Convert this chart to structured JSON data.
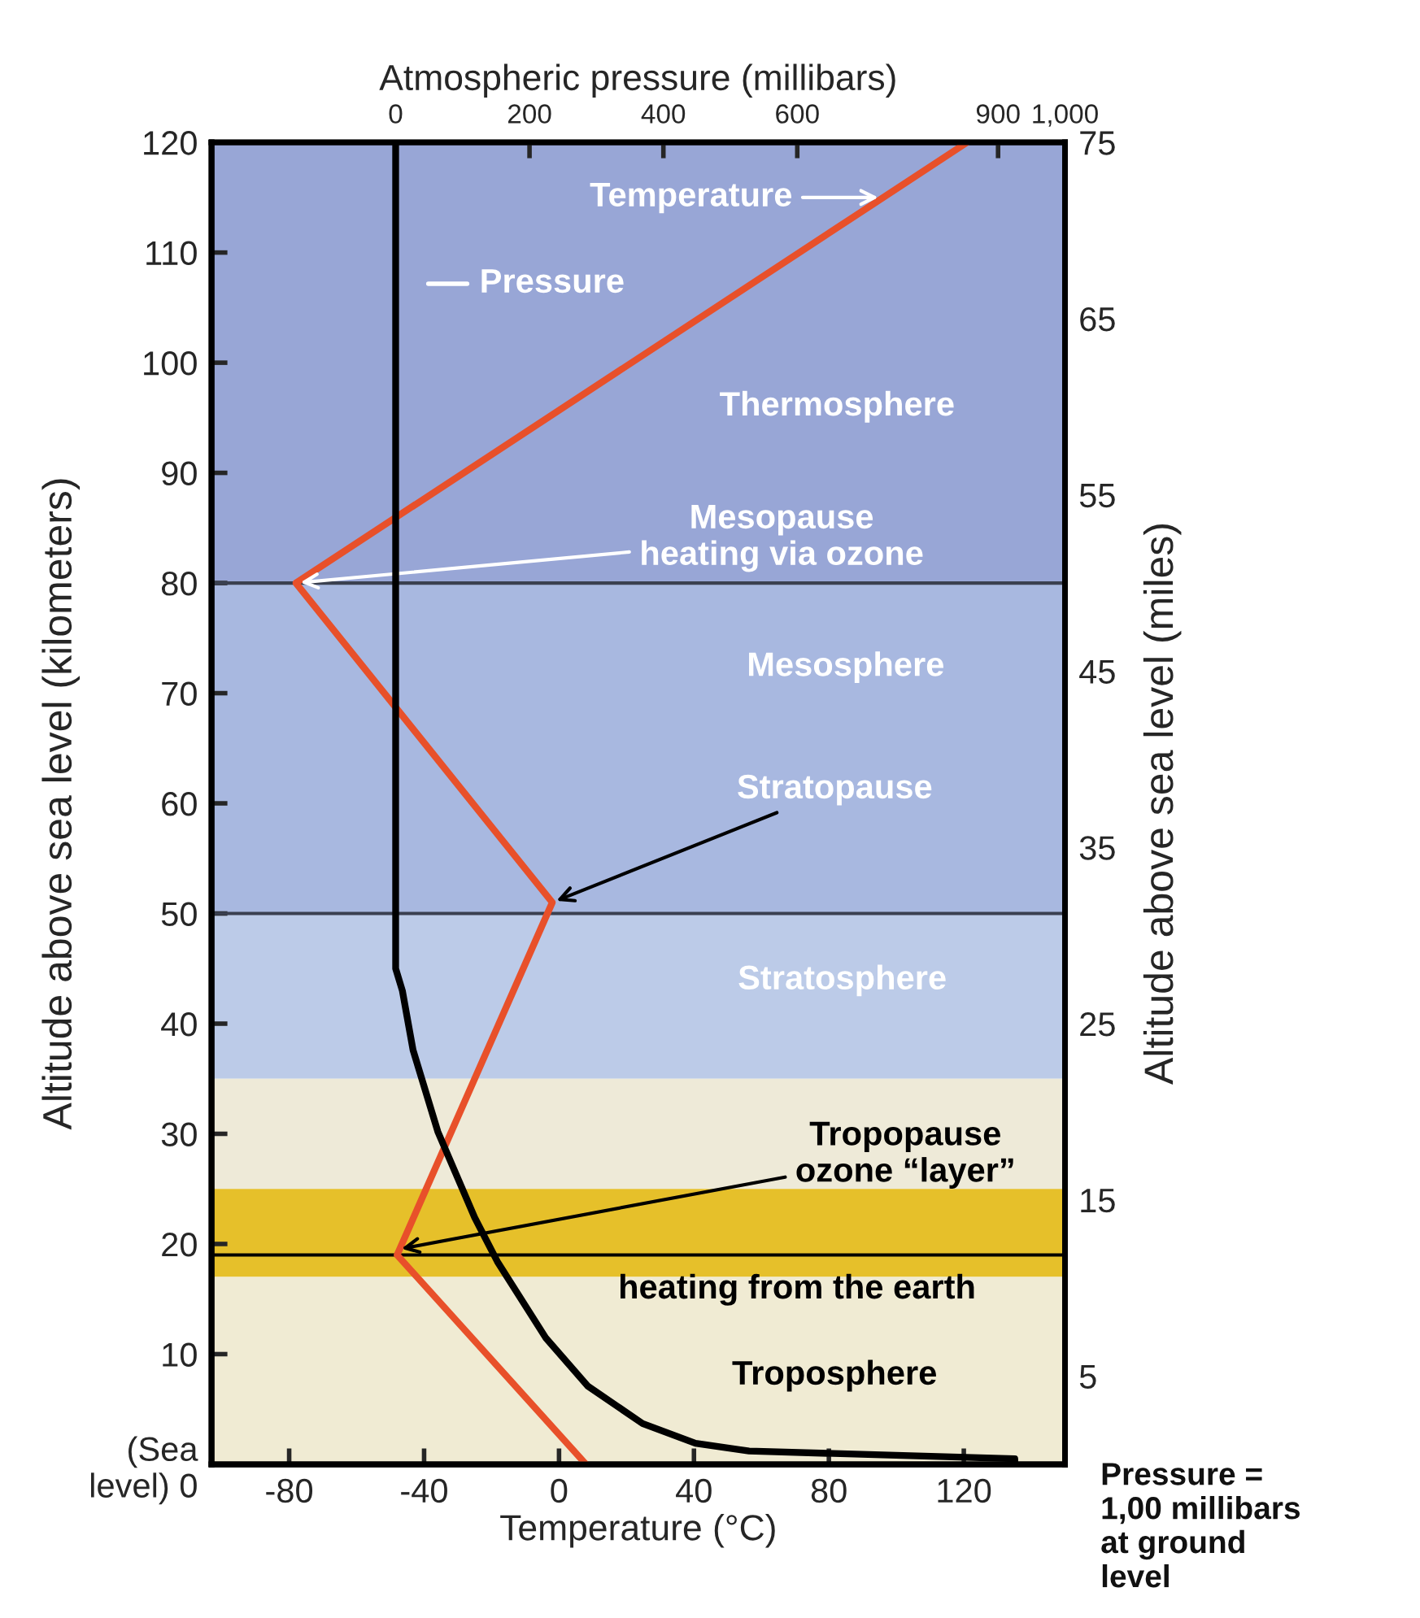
{
  "chart_data": {
    "type": "line",
    "xlabel": "Temperature (°C)",
    "ylabel": "Altitude above sea level (kilometers)",
    "y2label": "Altitude above sea level (miles)",
    "x2label": "Atmospheric pressure (millibars)",
    "xlim": [
      -103,
      150
    ],
    "xticks": [
      -80,
      -40,
      0,
      40,
      80,
      120
    ],
    "ylim": [
      0,
      120
    ],
    "yticks": [
      {
        "value": 0,
        "label": "(Sea\nlevel) 0"
      },
      10,
      20,
      30,
      40,
      50,
      60,
      70,
      80,
      90,
      100,
      110,
      120
    ],
    "y2lim": [
      0,
      75
    ],
    "y2ticks": [
      5,
      15,
      25,
      35,
      45,
      55,
      65,
      75
    ],
    "x2lim": [
      -275,
      1000
    ],
    "x2ticks": [
      0,
      200,
      400,
      600,
      900,
      {
        "value": 1000,
        "label": "1,000"
      }
    ],
    "series": [
      {
        "color": "#e8502a",
        "x": [
          8,
          -48,
          -2,
          -78,
          121
        ],
        "values": [
          0,
          19,
          51,
          80,
          120
        ]
      },
      {
        "axis": "x2",
        "color": "#000000",
        "x": [
          0,
          0,
          10,
          26,
          63,
          118,
          152,
          224,
          287,
          369,
          448,
          528,
          925,
          925
        ],
        "values": [
          120,
          45,
          43,
          37.6,
          30.2,
          22.4,
          18.4,
          11.5,
          7.1,
          3.7,
          1.9,
          1.2,
          0.5,
          0
        ]
      }
    ],
    "bands": [
      {
        "axis": "y",
        "from": 80,
        "to": 120,
        "color": "#98a6d6"
      },
      {
        "axis": "y",
        "from": 50,
        "to": 80,
        "color": "#a8b8e0"
      },
      {
        "axis": "y",
        "from": 35,
        "to": 50,
        "color": "#bccbe8"
      },
      {
        "axis": "y",
        "from": 25,
        "to": 35,
        "color": "#eeead8"
      },
      {
        "axis": "y",
        "from": 17,
        "to": 25,
        "color": "#e6c02a"
      },
      {
        "axis": "y",
        "from": 0,
        "to": 17,
        "color": "#f0ebd3"
      }
    ],
    "ref_lines": [
      {
        "axis": "y",
        "value": 80,
        "color": "#3a4050"
      },
      {
        "axis": "y",
        "value": 50,
        "color": "#3a4050"
      },
      {
        "axis": "y",
        "value": 19,
        "color": "#000000"
      }
    ],
    "annotations": [
      {
        "text": "Temperature",
        "x": 96,
        "y": 115
      },
      {
        "text": "Mesopause\nheating via ozone",
        "x": -78,
        "y": 80
      },
      {
        "text": "Stratopause",
        "x": -2,
        "y": 51
      },
      {
        "text": "Tropopause\nozone “layer”",
        "x": -48,
        "y": 19.5
      },
      "Pressure",
      "Thermosphere",
      "Mesosphere",
      "Stratosphere",
      "heating from the earth",
      "Troposphere",
      "Pressure =\n1,00 millibars\nat ground\nlevel"
    ],
    "grid": false,
    "legend": false,
    "marker": "none",
    "line_style": "solid"
  }
}
